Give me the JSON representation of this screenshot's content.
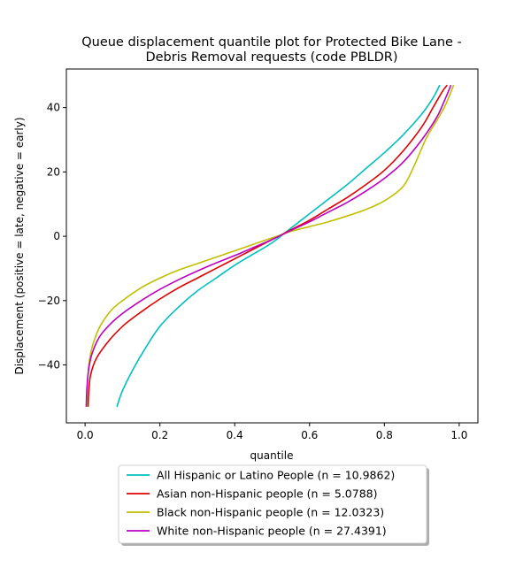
{
  "chart_data": {
    "type": "line",
    "title_lines": [
      "Queue displacement quantile plot for Protected Bike Lane -",
      "Debris Removal  requests (code PBLDR)"
    ],
    "xlabel": "quantile",
    "ylabel": "Displacement (positive = late, negative = early)",
    "xlim": [
      -0.05,
      1.05
    ],
    "ylim": [
      -58,
      52
    ],
    "xticks": [
      0.0,
      0.2,
      0.4,
      0.6,
      0.8,
      1.0
    ],
    "xtick_labels": [
      "0.0",
      "0.2",
      "0.4",
      "0.6",
      "0.8",
      "1.0"
    ],
    "yticks": [
      -40,
      -20,
      0,
      20,
      40
    ],
    "ytick_labels": [
      "−40",
      "−20",
      "0",
      "20",
      "40"
    ],
    "grid": false,
    "legend_position": "below",
    "series": [
      {
        "name": "All Hispanic or Latino People (n = 10.9862)",
        "color": "#00bfbf",
        "points": [
          [
            0.085,
            -53
          ],
          [
            0.1,
            -48
          ],
          [
            0.13,
            -41
          ],
          [
            0.16,
            -35
          ],
          [
            0.2,
            -28
          ],
          [
            0.25,
            -22
          ],
          [
            0.3,
            -17
          ],
          [
            0.35,
            -13
          ],
          [
            0.4,
            -9
          ],
          [
            0.45,
            -5.5
          ],
          [
            0.5,
            -2
          ],
          [
            0.55,
            2.5
          ],
          [
            0.6,
            7
          ],
          [
            0.65,
            11.5
          ],
          [
            0.7,
            16
          ],
          [
            0.75,
            21
          ],
          [
            0.8,
            26
          ],
          [
            0.85,
            31.5
          ],
          [
            0.9,
            38
          ],
          [
            0.93,
            43
          ],
          [
            0.948,
            47
          ]
        ]
      },
      {
        "name": "Asian non-Hispanic people (n = 5.0788)",
        "color": "#e00000",
        "points": [
          [
            0.008,
            -53
          ],
          [
            0.01,
            -48
          ],
          [
            0.015,
            -43
          ],
          [
            0.03,
            -38
          ],
          [
            0.06,
            -33
          ],
          [
            0.1,
            -28
          ],
          [
            0.15,
            -23.5
          ],
          [
            0.2,
            -19.5
          ],
          [
            0.25,
            -16
          ],
          [
            0.3,
            -13
          ],
          [
            0.35,
            -10
          ],
          [
            0.4,
            -7
          ],
          [
            0.45,
            -4
          ],
          [
            0.5,
            -1
          ],
          [
            0.55,
            2
          ],
          [
            0.6,
            5
          ],
          [
            0.65,
            8.5
          ],
          [
            0.7,
            12
          ],
          [
            0.75,
            16
          ],
          [
            0.8,
            20.5
          ],
          [
            0.85,
            26.5
          ],
          [
            0.9,
            34
          ],
          [
            0.93,
            40
          ],
          [
            0.955,
            45
          ],
          [
            0.968,
            47
          ]
        ]
      },
      {
        "name": "Black non-Hispanic people (n = 12.0323)",
        "color": "#bfbf00",
        "points": [
          [
            0.004,
            -53
          ],
          [
            0.006,
            -47
          ],
          [
            0.01,
            -40
          ],
          [
            0.02,
            -34
          ],
          [
            0.04,
            -28
          ],
          [
            0.07,
            -23
          ],
          [
            0.1,
            -20
          ],
          [
            0.15,
            -16
          ],
          [
            0.2,
            -13
          ],
          [
            0.25,
            -10.5
          ],
          [
            0.3,
            -8.5
          ],
          [
            0.35,
            -6.5
          ],
          [
            0.4,
            -4.5
          ],
          [
            0.45,
            -2.5
          ],
          [
            0.5,
            -0.5
          ],
          [
            0.55,
            1.5
          ],
          [
            0.6,
            3
          ],
          [
            0.65,
            4.5
          ],
          [
            0.7,
            6.3
          ],
          [
            0.75,
            8.3
          ],
          [
            0.8,
            11
          ],
          [
            0.85,
            15.5
          ],
          [
            0.88,
            22
          ],
          [
            0.91,
            30
          ],
          [
            0.94,
            36
          ],
          [
            0.96,
            40
          ],
          [
            0.975,
            44
          ],
          [
            0.985,
            47
          ]
        ]
      },
      {
        "name": "White non-Hispanic people (n = 27.4391)",
        "color": "#bf00bf",
        "points": [
          [
            0.003,
            -53
          ],
          [
            0.005,
            -47
          ],
          [
            0.01,
            -41
          ],
          [
            0.02,
            -36
          ],
          [
            0.04,
            -31
          ],
          [
            0.07,
            -27
          ],
          [
            0.1,
            -24
          ],
          [
            0.15,
            -20
          ],
          [
            0.2,
            -16.5
          ],
          [
            0.25,
            -13.5
          ],
          [
            0.3,
            -10.8
          ],
          [
            0.35,
            -8.3
          ],
          [
            0.4,
            -6
          ],
          [
            0.45,
            -3.5
          ],
          [
            0.5,
            -1
          ],
          [
            0.55,
            1.8
          ],
          [
            0.6,
            4.5
          ],
          [
            0.65,
            7.5
          ],
          [
            0.7,
            10.5
          ],
          [
            0.75,
            14
          ],
          [
            0.8,
            18
          ],
          [
            0.85,
            23
          ],
          [
            0.9,
            30
          ],
          [
            0.94,
            37
          ],
          [
            0.96,
            42
          ],
          [
            0.978,
            47
          ]
        ]
      }
    ]
  }
}
